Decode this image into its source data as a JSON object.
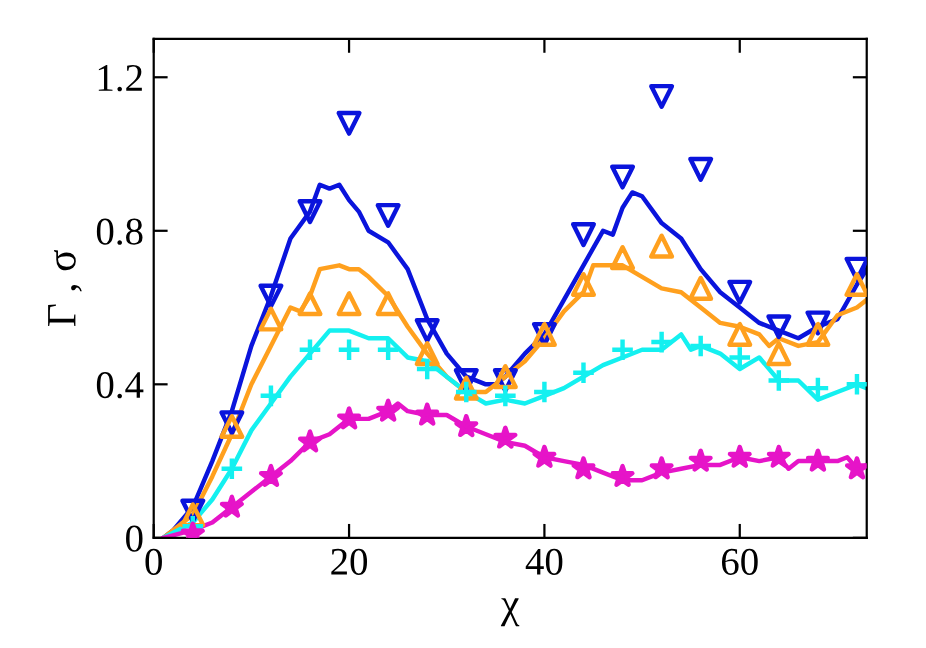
{
  "chart_data": {
    "type": "line",
    "xlabel": "χ",
    "ylabel": "Γ , σ",
    "xlim": [
      0,
      73
    ],
    "ylim": [
      0,
      1.3
    ],
    "xticks": [
      0,
      20,
      40,
      60
    ],
    "yticks": [
      0,
      0.4,
      0.8,
      1.2
    ],
    "grid": false,
    "legend": false,
    "series": [
      {
        "color": "#0a14dc",
        "marker": "none",
        "line_style": "solid",
        "x": [
          1,
          2,
          4,
          6,
          8,
          10,
          12,
          14,
          16,
          17,
          18,
          19,
          20,
          21,
          22,
          24,
          26,
          28,
          30,
          32,
          34,
          35,
          36,
          38,
          40,
          42,
          44,
          46,
          47,
          48,
          49,
          50,
          52,
          54,
          56,
          58,
          60,
          62,
          64,
          66,
          68,
          70,
          72,
          73
        ],
        "values": [
          0,
          0.02,
          0.08,
          0.2,
          0.33,
          0.5,
          0.63,
          0.78,
          0.85,
          0.92,
          0.91,
          0.92,
          0.88,
          0.85,
          0.8,
          0.77,
          0.7,
          0.57,
          0.48,
          0.42,
          0.4,
          0.4,
          0.42,
          0.48,
          0.53,
          0.62,
          0.71,
          0.8,
          0.79,
          0.86,
          0.9,
          0.89,
          0.82,
          0.78,
          0.7,
          0.64,
          0.6,
          0.56,
          0.54,
          0.52,
          0.55,
          0.57,
          0.66,
          0.7
        ]
      },
      {
        "color": "#ffa01e",
        "marker": "none",
        "line_style": "solid",
        "x": [
          1,
          4,
          6,
          8,
          10,
          12,
          14,
          15,
          16,
          17,
          19,
          20,
          21,
          22,
          24,
          26,
          28,
          30,
          32,
          34,
          36,
          38,
          40,
          42,
          44,
          45,
          47,
          48,
          50,
          52,
          54,
          56,
          58,
          60,
          62,
          63,
          64,
          66,
          68,
          70,
          72,
          73
        ],
        "values": [
          0,
          0.06,
          0.16,
          0.27,
          0.4,
          0.5,
          0.6,
          0.59,
          0.63,
          0.7,
          0.71,
          0.7,
          0.7,
          0.68,
          0.63,
          0.55,
          0.48,
          0.42,
          0.38,
          0.38,
          0.42,
          0.46,
          0.52,
          0.59,
          0.64,
          0.71,
          0.71,
          0.71,
          0.68,
          0.65,
          0.64,
          0.6,
          0.56,
          0.55,
          0.53,
          0.5,
          0.52,
          0.5,
          0.51,
          0.58,
          0.6,
          0.62
        ]
      },
      {
        "color": "#14f0f0",
        "marker": "none",
        "line_style": "solid",
        "x": [
          1,
          4,
          6,
          8,
          10,
          12,
          14,
          16,
          18,
          20,
          22,
          24,
          26,
          28,
          30,
          32,
          34,
          36,
          38,
          40,
          42,
          44,
          46,
          48,
          50,
          52,
          54,
          55,
          56,
          58,
          60,
          62,
          64,
          66,
          68,
          70,
          72,
          73
        ],
        "values": [
          0,
          0.04,
          0.1,
          0.18,
          0.28,
          0.35,
          0.42,
          0.48,
          0.54,
          0.54,
          0.52,
          0.52,
          0.47,
          0.46,
          0.42,
          0.38,
          0.35,
          0.36,
          0.35,
          0.37,
          0.39,
          0.42,
          0.45,
          0.47,
          0.49,
          0.49,
          0.53,
          0.49,
          0.5,
          0.48,
          0.44,
          0.47,
          0.41,
          0.41,
          0.36,
          0.38,
          0.4,
          0.39
        ]
      },
      {
        "color": "#e614c8",
        "marker": "none",
        "line_style": "solid",
        "x": [
          1,
          4,
          6,
          8,
          10,
          12,
          14,
          16,
          18,
          20,
          22,
          24,
          25,
          26,
          28,
          30,
          32,
          34,
          36,
          38,
          40,
          42,
          44,
          46,
          48,
          50,
          52,
          54,
          56,
          58,
          60,
          62,
          64,
          65,
          66,
          68,
          70,
          71,
          72,
          73
        ],
        "values": [
          0,
          0.02,
          0.04,
          0.08,
          0.12,
          0.16,
          0.2,
          0.25,
          0.27,
          0.31,
          0.31,
          0.33,
          0.35,
          0.33,
          0.32,
          0.32,
          0.29,
          0.27,
          0.25,
          0.24,
          0.21,
          0.2,
          0.19,
          0.17,
          0.15,
          0.15,
          0.17,
          0.18,
          0.19,
          0.19,
          0.21,
          0.2,
          0.21,
          0.18,
          0.2,
          0.2,
          0.2,
          0.21,
          0.18,
          0.19
        ]
      },
      {
        "type": "scatter",
        "color": "#0a14dc",
        "marker": "triangle_down",
        "x": [
          4,
          8,
          12,
          16,
          20,
          24,
          28,
          32,
          36,
          40,
          44,
          48,
          52,
          56,
          60,
          64,
          68,
          72
        ],
        "values": [
          0.07,
          0.3,
          0.63,
          0.85,
          1.08,
          0.84,
          0.54,
          0.41,
          0.41,
          0.53,
          0.79,
          0.94,
          1.15,
          0.96,
          0.64,
          0.55,
          0.56,
          0.7
        ]
      },
      {
        "type": "scatter",
        "color": "#ffa01e",
        "marker": "triangle",
        "x": [
          4,
          8,
          12,
          16,
          20,
          24,
          28,
          32,
          36,
          40,
          44,
          48,
          52,
          56,
          60,
          64,
          68,
          72
        ],
        "values": [
          0.06,
          0.29,
          0.57,
          0.61,
          0.61,
          0.61,
          0.48,
          0.39,
          0.42,
          0.53,
          0.66,
          0.73,
          0.76,
          0.65,
          0.53,
          0.48,
          0.53,
          0.66
        ]
      },
      {
        "type": "scatter",
        "color": "#14f0f0",
        "marker": "cross",
        "x": [
          4,
          8,
          12,
          16,
          20,
          24,
          28,
          32,
          36,
          40,
          44,
          48,
          52,
          56,
          60,
          64,
          68,
          72
        ],
        "values": [
          0.03,
          0.18,
          0.37,
          0.49,
          0.49,
          0.49,
          0.44,
          0.38,
          0.37,
          0.38,
          0.43,
          0.49,
          0.51,
          0.5,
          0.47,
          0.41,
          0.39,
          0.4
        ]
      },
      {
        "type": "scatter",
        "color": "#e614c8",
        "marker": "star",
        "x": [
          4,
          8,
          12,
          16,
          20,
          24,
          28,
          32,
          36,
          40,
          44,
          48,
          52,
          56,
          60,
          64,
          68,
          72
        ],
        "values": [
          0.01,
          0.08,
          0.16,
          0.25,
          0.31,
          0.33,
          0.32,
          0.29,
          0.26,
          0.21,
          0.18,
          0.16,
          0.18,
          0.2,
          0.21,
          0.21,
          0.2,
          0.18
        ]
      }
    ]
  }
}
